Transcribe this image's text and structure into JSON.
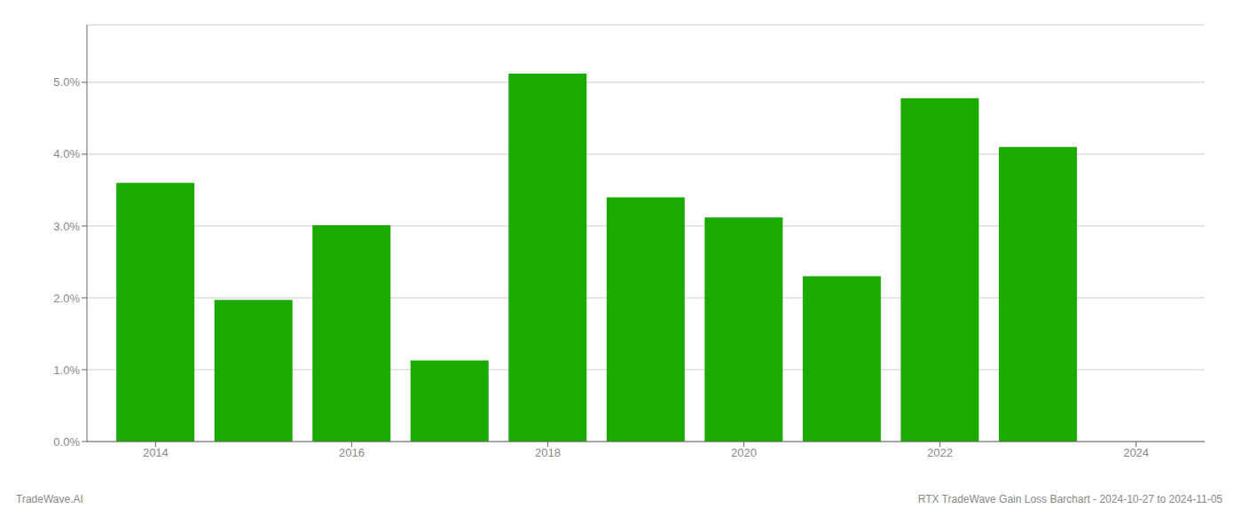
{
  "chart_data": {
    "type": "bar",
    "x": [
      2014,
      2015,
      2016,
      2017,
      2018,
      2019,
      2020,
      2021,
      2022,
      2023
    ],
    "values": [
      0.036,
      0.0197,
      0.0301,
      0.0113,
      0.0512,
      0.034,
      0.0312,
      0.023,
      0.0478,
      0.041
    ],
    "color": "#1aaa00",
    "xlim": [
      2013.3,
      2024.7
    ],
    "xticks": [
      2014,
      2016,
      2018,
      2020,
      2022,
      2024
    ],
    "ylim": [
      0,
      0.058
    ],
    "yticks": [
      {
        "value": 0.0,
        "label": "0.0%"
      },
      {
        "value": 0.01,
        "label": "1.0%"
      },
      {
        "value": 0.02,
        "label": "2.0%"
      },
      {
        "value": 0.03,
        "label": "3.0%"
      },
      {
        "value": 0.04,
        "label": "4.0%"
      },
      {
        "value": 0.05,
        "label": "5.0%"
      }
    ],
    "grid": true,
    "annotations": [
      "TradeWave.AI",
      "RTX TradeWave Gain Loss Barchart - 2024-10-27 to 2024-11-05"
    ]
  }
}
